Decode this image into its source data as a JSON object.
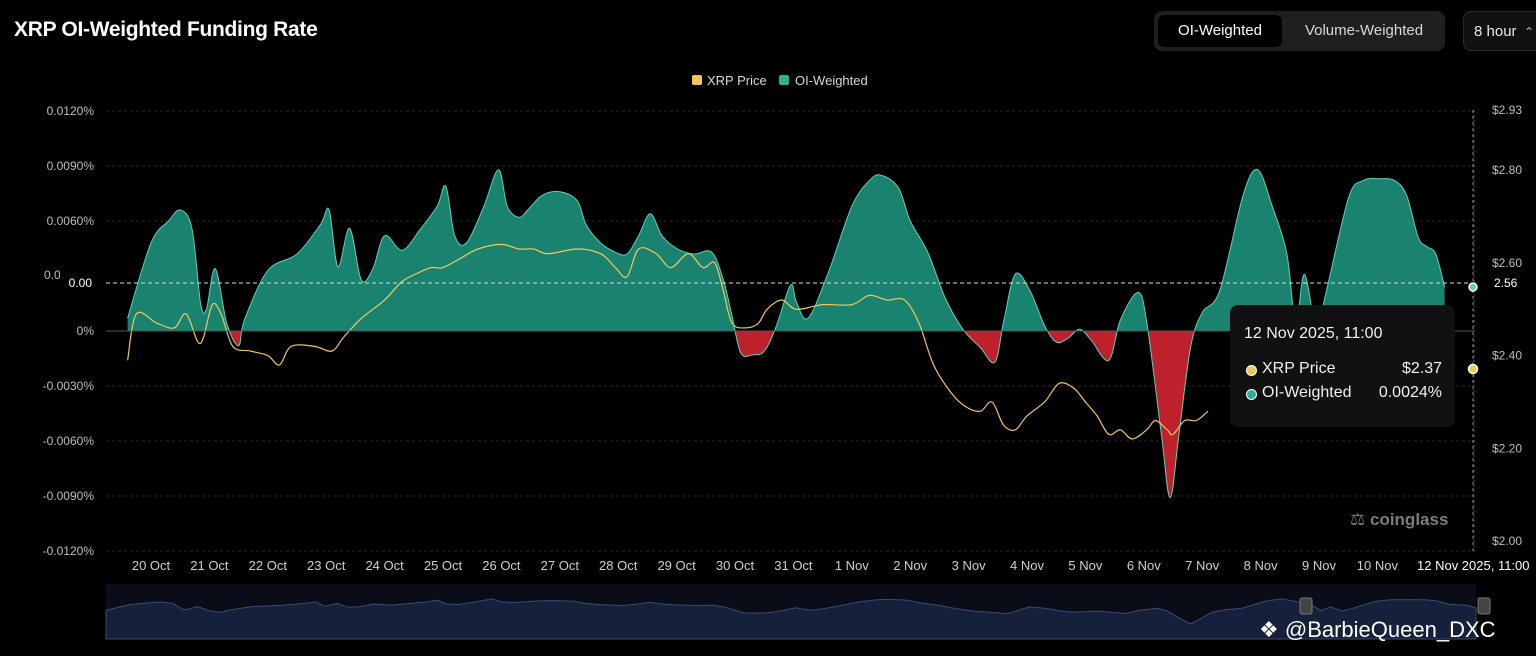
{
  "header": {
    "title": "XRP OI-Weighted Funding Rate",
    "tabs": [
      "OI-Weighted",
      "Volume-Weighted"
    ],
    "active_tab": "OI-Weighted",
    "interval": "8 hour"
  },
  "tooltip": {
    "date": "12 Nov 2025, 11:00",
    "rows": [
      {
        "label": "XRP Price",
        "value": "$2.37",
        "color": "#f0c75e"
      },
      {
        "label": "OI-Weighted",
        "value": "0.0024%",
        "color": "#2bb39a"
      }
    ]
  },
  "branding": {
    "logo": "coinglass",
    "watermark": "@BarbieQueen_DXC"
  },
  "colors": {
    "positive": "#1a8a75",
    "negative": "#c8232e",
    "price": "#f0c75e",
    "line": "#5cd3b8"
  },
  "chart_data": {
    "type": "area",
    "title": "XRP OI-Weighted Funding Rate",
    "legend": [
      "XRP Price",
      "OI-Weighted"
    ],
    "y_left": {
      "ticks": [
        "0.0120%",
        "0.0090%",
        "0.0060%",
        "0.00",
        "0%",
        "-0.0030%",
        "-0.0060%",
        "-0.0090%",
        "-0.0120%"
      ],
      "range": [
        -0.012,
        0.012
      ],
      "unit": "%"
    },
    "y_right": {
      "ticks": [
        "$2.93",
        "$2.80",
        "$2.60",
        "2.56",
        "$2.40",
        "$2.20",
        "$2.00"
      ],
      "range": [
        2.0,
        2.93
      ]
    },
    "x_labels": [
      "20 Oct",
      "21 Oct",
      "22 Oct",
      "23 Oct",
      "24 Oct",
      "25 Oct",
      "26 Oct",
      "27 Oct",
      "28 Oct",
      "29 Oct",
      "30 Oct",
      "31 Oct",
      "1 Nov",
      "2 Nov",
      "3 Nov",
      "4 Nov",
      "5 Nov",
      "6 Nov",
      "7 Nov",
      "8 Nov",
      "9 Nov",
      "10 Nov"
    ],
    "crosshair_label": "12 Nov 2025, 11:00",
    "crosshair_price": "2.56",
    "funding": [
      [
        19.6,
        0.0007
      ],
      [
        20,
        0.0048
      ],
      [
        20.3,
        0.006
      ],
      [
        20.5,
        0.0066
      ],
      [
        20.7,
        0.0056
      ],
      [
        20.85,
        0.0015
      ],
      [
        20.95,
        0.0012
      ],
      [
        21.1,
        0.0034
      ],
      [
        21.3,
        0.0004
      ],
      [
        21.5,
        -0.0008
      ],
      [
        21.6,
        0.0006
      ],
      [
        22,
        0.0033
      ],
      [
        22.5,
        0.0042
      ],
      [
        22.9,
        0.0058
      ],
      [
        23.05,
        0.0066
      ],
      [
        23.2,
        0.0035
      ],
      [
        23.4,
        0.0056
      ],
      [
        23.6,
        0.0028
      ],
      [
        23.8,
        0.0034
      ],
      [
        24,
        0.0052
      ],
      [
        24.3,
        0.0044
      ],
      [
        24.6,
        0.0055
      ],
      [
        24.9,
        0.0068
      ],
      [
        25.05,
        0.0079
      ],
      [
        25.2,
        0.0052
      ],
      [
        25.4,
        0.0048
      ],
      [
        25.7,
        0.0068
      ],
      [
        25.95,
        0.0088
      ],
      [
        26.1,
        0.0068
      ],
      [
        26.3,
        0.0062
      ],
      [
        26.45,
        0.0066
      ],
      [
        26.7,
        0.0074
      ],
      [
        27,
        0.0076
      ],
      [
        27.3,
        0.0071
      ],
      [
        27.45,
        0.0058
      ],
      [
        27.7,
        0.0048
      ],
      [
        27.95,
        0.0043
      ],
      [
        28.15,
        0.0042
      ],
      [
        28.35,
        0.0052
      ],
      [
        28.55,
        0.0064
      ],
      [
        28.75,
        0.0052
      ],
      [
        29,
        0.0045
      ],
      [
        29.3,
        0.0042
      ],
      [
        29.6,
        0.0043
      ],
      [
        29.8,
        0.0028
      ],
      [
        29.95,
        0.0008
      ],
      [
        30.1,
        -0.0012
      ],
      [
        30.3,
        -0.0013
      ],
      [
        30.5,
        -0.0011
      ],
      [
        30.7,
        0.0002
      ],
      [
        30.95,
        0.0025
      ],
      [
        31.05,
        0.0016
      ],
      [
        31.25,
        0.0007
      ],
      [
        31.6,
        0.0032
      ],
      [
        32,
        0.0068
      ],
      [
        32.3,
        0.0082
      ],
      [
        32.5,
        0.0085
      ],
      [
        32.8,
        0.0078
      ],
      [
        33,
        0.006
      ],
      [
        33.3,
        0.0043
      ],
      [
        33.6,
        0.0018
      ],
      [
        33.9,
        0.0001
      ],
      [
        34.2,
        -0.0009
      ],
      [
        34.45,
        -0.0017
      ],
      [
        34.6,
        0.0005
      ],
      [
        34.8,
        0.0031
      ],
      [
        35.05,
        0.0022
      ],
      [
        35.3,
        0.0003
      ],
      [
        35.5,
        -0.0006
      ],
      [
        35.7,
        -0.0004
      ],
      [
        35.9,
        0.0001
      ],
      [
        36.1,
        -0.0005
      ],
      [
        36.4,
        -0.0016
      ],
      [
        36.6,
        0.0006
      ],
      [
        36.9,
        0.0021
      ],
      [
        37.05,
        0.0005
      ],
      [
        37.3,
        -0.0056
      ],
      [
        37.45,
        -0.0091
      ],
      [
        37.6,
        -0.0057
      ],
      [
        37.8,
        -0.0009
      ],
      [
        38,
        0.001
      ],
      [
        38.3,
        0.0022
      ],
      [
        38.7,
        0.0074
      ],
      [
        38.95,
        0.0088
      ],
      [
        39.2,
        0.0068
      ],
      [
        39.45,
        0.0042
      ],
      [
        39.6,
        0.0004
      ],
      [
        39.75,
        0.0031
      ],
      [
        39.95,
        0.0002
      ],
      [
        40.1,
        0.0018
      ],
      [
        40.5,
        0.0072
      ],
      [
        40.75,
        0.0082
      ],
      [
        41.05,
        0.0083
      ],
      [
        41.3,
        0.0082
      ],
      [
        41.5,
        0.0074
      ],
      [
        41.7,
        0.0051
      ],
      [
        41.85,
        0.0046
      ],
      [
        42,
        0.0042
      ],
      [
        42.15,
        0.0024
      ]
    ],
    "price": [
      [
        19.6,
        2.39
      ],
      [
        19.75,
        2.49
      ],
      [
        20.1,
        2.47
      ],
      [
        20.4,
        2.46
      ],
      [
        20.6,
        2.49
      ],
      [
        20.8,
        2.43
      ],
      [
        20.9,
        2.44
      ],
      [
        21.05,
        2.51
      ],
      [
        21.2,
        2.49
      ],
      [
        21.4,
        2.42
      ],
      [
        21.7,
        2.41
      ],
      [
        22,
        2.4
      ],
      [
        22.2,
        2.38
      ],
      [
        22.4,
        2.42
      ],
      [
        22.8,
        2.42
      ],
      [
        23.1,
        2.41
      ],
      [
        23.3,
        2.44
      ],
      [
        23.6,
        2.48
      ],
      [
        24,
        2.52
      ],
      [
        24.3,
        2.56
      ],
      [
        24.6,
        2.58
      ],
      [
        24.8,
        2.59
      ],
      [
        25,
        2.59
      ],
      [
        25.3,
        2.61
      ],
      [
        25.6,
        2.63
      ],
      [
        26,
        2.64
      ],
      [
        26.3,
        2.63
      ],
      [
        26.55,
        2.63
      ],
      [
        26.8,
        2.62
      ],
      [
        27.3,
        2.63
      ],
      [
        27.7,
        2.62
      ],
      [
        27.95,
        2.59
      ],
      [
        28.15,
        2.57
      ],
      [
        28.35,
        2.63
      ],
      [
        28.65,
        2.62
      ],
      [
        28.9,
        2.59
      ],
      [
        29.2,
        2.62
      ],
      [
        29.45,
        2.59
      ],
      [
        29.65,
        2.6
      ],
      [
        29.8,
        2.54
      ],
      [
        29.95,
        2.47
      ],
      [
        30.2,
        2.46
      ],
      [
        30.4,
        2.47
      ],
      [
        30.55,
        2.5
      ],
      [
        30.8,
        2.52
      ],
      [
        31.05,
        2.5
      ],
      [
        31.5,
        2.51
      ],
      [
        32,
        2.51
      ],
      [
        32.3,
        2.53
      ],
      [
        32.6,
        2.52
      ],
      [
        32.9,
        2.52
      ],
      [
        33.15,
        2.47
      ],
      [
        33.4,
        2.38
      ],
      [
        33.7,
        2.32
      ],
      [
        33.95,
        2.29
      ],
      [
        34.2,
        2.28
      ],
      [
        34.4,
        2.3
      ],
      [
        34.6,
        2.25
      ],
      [
        34.8,
        2.24
      ],
      [
        35,
        2.27
      ],
      [
        35.3,
        2.3
      ],
      [
        35.55,
        2.34
      ],
      [
        35.8,
        2.33
      ],
      [
        36,
        2.3
      ],
      [
        36.2,
        2.27
      ],
      [
        36.4,
        2.23
      ],
      [
        36.6,
        2.24
      ],
      [
        36.8,
        2.22
      ],
      [
        37.05,
        2.24
      ],
      [
        37.2,
        2.26
      ],
      [
        37.4,
        2.24
      ],
      [
        37.5,
        2.23
      ],
      [
        37.7,
        2.26
      ],
      [
        37.9,
        2.26
      ],
      [
        38.1,
        2.28
      ]
    ]
  }
}
